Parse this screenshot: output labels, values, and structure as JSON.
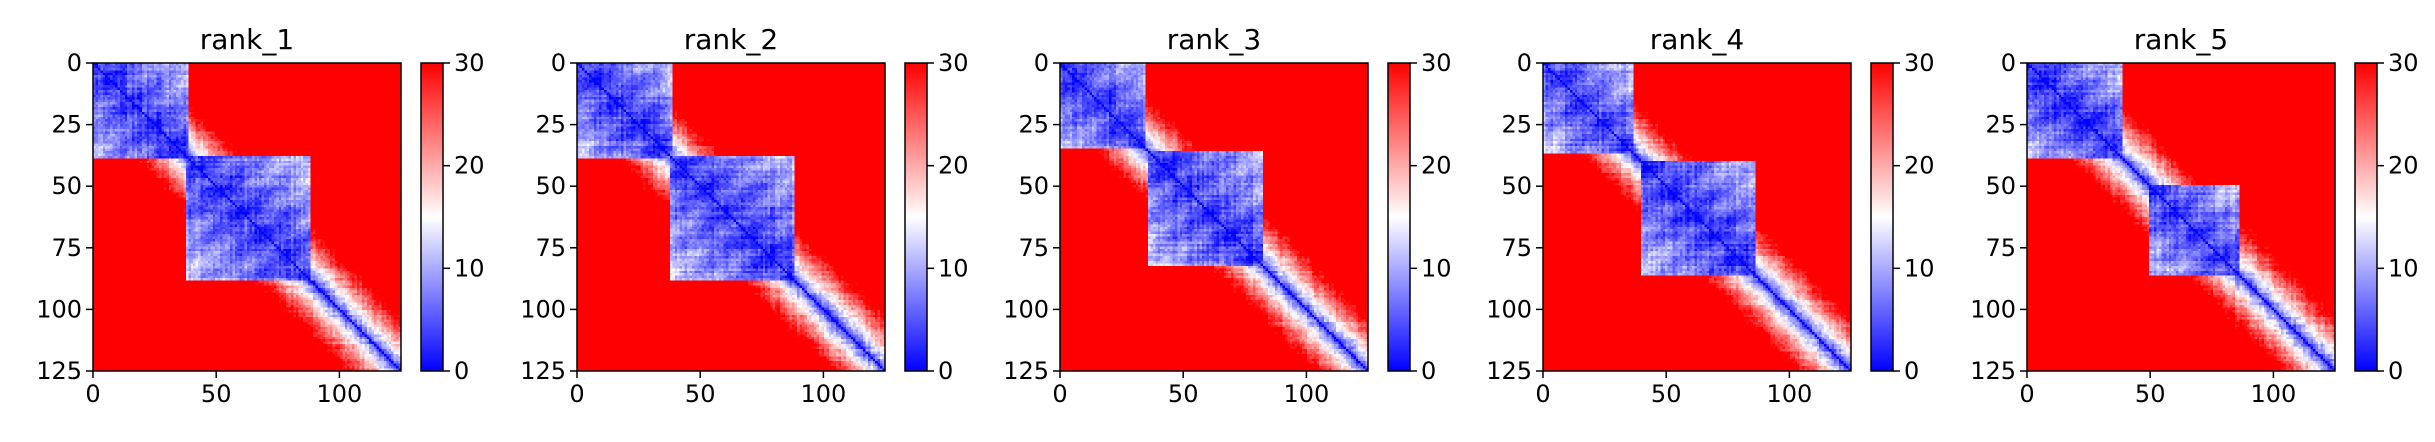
{
  "figure": {
    "panel_titles": [
      "rank_1",
      "rank_2",
      "rank_3",
      "rank_4",
      "rank_5"
    ]
  },
  "chart_data": [
    {
      "type": "heatmap",
      "title": "rank_1",
      "xlim": [
        0,
        125
      ],
      "ylim": [
        125,
        0
      ],
      "x_ticks": [
        0,
        50,
        100
      ],
      "y_ticks": [
        0,
        25,
        50,
        75,
        100,
        125
      ],
      "x_tick_labels": [
        "0",
        "50",
        "100"
      ],
      "y_tick_labels": [
        "0",
        "25",
        "50",
        "75",
        "100",
        "125"
      ],
      "colorbar": {
        "range": [
          0,
          30
        ],
        "ticks": [
          0,
          10,
          20,
          30
        ],
        "tick_labels": [
          "0",
          "10",
          "20",
          "30"
        ],
        "colormap": "bwr",
        "colors": [
          "#0000ff",
          "#ffffff",
          "#ff0000"
        ]
      },
      "domains": [
        [
          0,
          38
        ],
        [
          38,
          88
        ]
      ],
      "texture_seed": 11
    },
    {
      "type": "heatmap",
      "title": "rank_2",
      "xlim": [
        0,
        125
      ],
      "ylim": [
        125,
        0
      ],
      "x_ticks": [
        0,
        50,
        100
      ],
      "y_ticks": [
        0,
        25,
        50,
        75,
        100,
        125
      ],
      "x_tick_labels": [
        "0",
        "50",
        "100"
      ],
      "y_tick_labels": [
        "0",
        "25",
        "50",
        "75",
        "100",
        "125"
      ],
      "colorbar": {
        "range": [
          0,
          30
        ],
        "ticks": [
          0,
          10,
          20,
          30
        ],
        "tick_labels": [
          "0",
          "10",
          "20",
          "30"
        ],
        "colormap": "bwr",
        "colors": [
          "#0000ff",
          "#ffffff",
          "#ff0000"
        ]
      },
      "domains": [
        [
          0,
          38
        ],
        [
          38,
          88
        ]
      ],
      "texture_seed": 23
    },
    {
      "type": "heatmap",
      "title": "rank_3",
      "xlim": [
        0,
        125
      ],
      "ylim": [
        125,
        0
      ],
      "x_ticks": [
        0,
        50,
        100
      ],
      "y_ticks": [
        0,
        25,
        50,
        75,
        100,
        125
      ],
      "x_tick_labels": [
        "0",
        "50",
        "100"
      ],
      "y_tick_labels": [
        "0",
        "25",
        "50",
        "75",
        "100",
        "125"
      ],
      "colorbar": {
        "range": [
          0,
          30
        ],
        "ticks": [
          0,
          10,
          20,
          30
        ],
        "tick_labels": [
          "0",
          "10",
          "20",
          "30"
        ],
        "colormap": "bwr",
        "colors": [
          "#0000ff",
          "#ffffff",
          "#ff0000"
        ]
      },
      "domains": [
        [
          0,
          34
        ],
        [
          36,
          82
        ]
      ],
      "texture_seed": 37
    },
    {
      "type": "heatmap",
      "title": "rank_4",
      "xlim": [
        0,
        125
      ],
      "ylim": [
        125,
        0
      ],
      "x_ticks": [
        0,
        50,
        100
      ],
      "y_ticks": [
        0,
        25,
        50,
        75,
        100,
        125
      ],
      "x_tick_labels": [
        "0",
        "50",
        "100"
      ],
      "y_tick_labels": [
        "0",
        "25",
        "50",
        "75",
        "100",
        "125"
      ],
      "colorbar": {
        "range": [
          0,
          30
        ],
        "ticks": [
          0,
          10,
          20,
          30
        ],
        "tick_labels": [
          "0",
          "10",
          "20",
          "30"
        ],
        "colormap": "bwr",
        "colors": [
          "#0000ff",
          "#ffffff",
          "#ff0000"
        ]
      },
      "domains": [
        [
          0,
          36
        ],
        [
          40,
          86
        ]
      ],
      "texture_seed": 41
    },
    {
      "type": "heatmap",
      "title": "rank_5",
      "xlim": [
        0,
        125
      ],
      "ylim": [
        125,
        0
      ],
      "x_ticks": [
        0,
        50,
        100
      ],
      "y_ticks": [
        0,
        25,
        50,
        75,
        100,
        125
      ],
      "x_tick_labels": [
        "0",
        "50",
        "100"
      ],
      "y_tick_labels": [
        "0",
        "25",
        "50",
        "75",
        "100",
        "125"
      ],
      "colorbar": {
        "range": [
          0,
          30
        ],
        "ticks": [
          0,
          10,
          20,
          30
        ],
        "tick_labels": [
          "0",
          "10",
          "20",
          "30"
        ],
        "colormap": "bwr",
        "colors": [
          "#0000ff",
          "#ffffff",
          "#ff0000"
        ]
      },
      "domains": [
        [
          0,
          38
        ],
        [
          50,
          86
        ]
      ],
      "texture_seed": 53
    }
  ]
}
